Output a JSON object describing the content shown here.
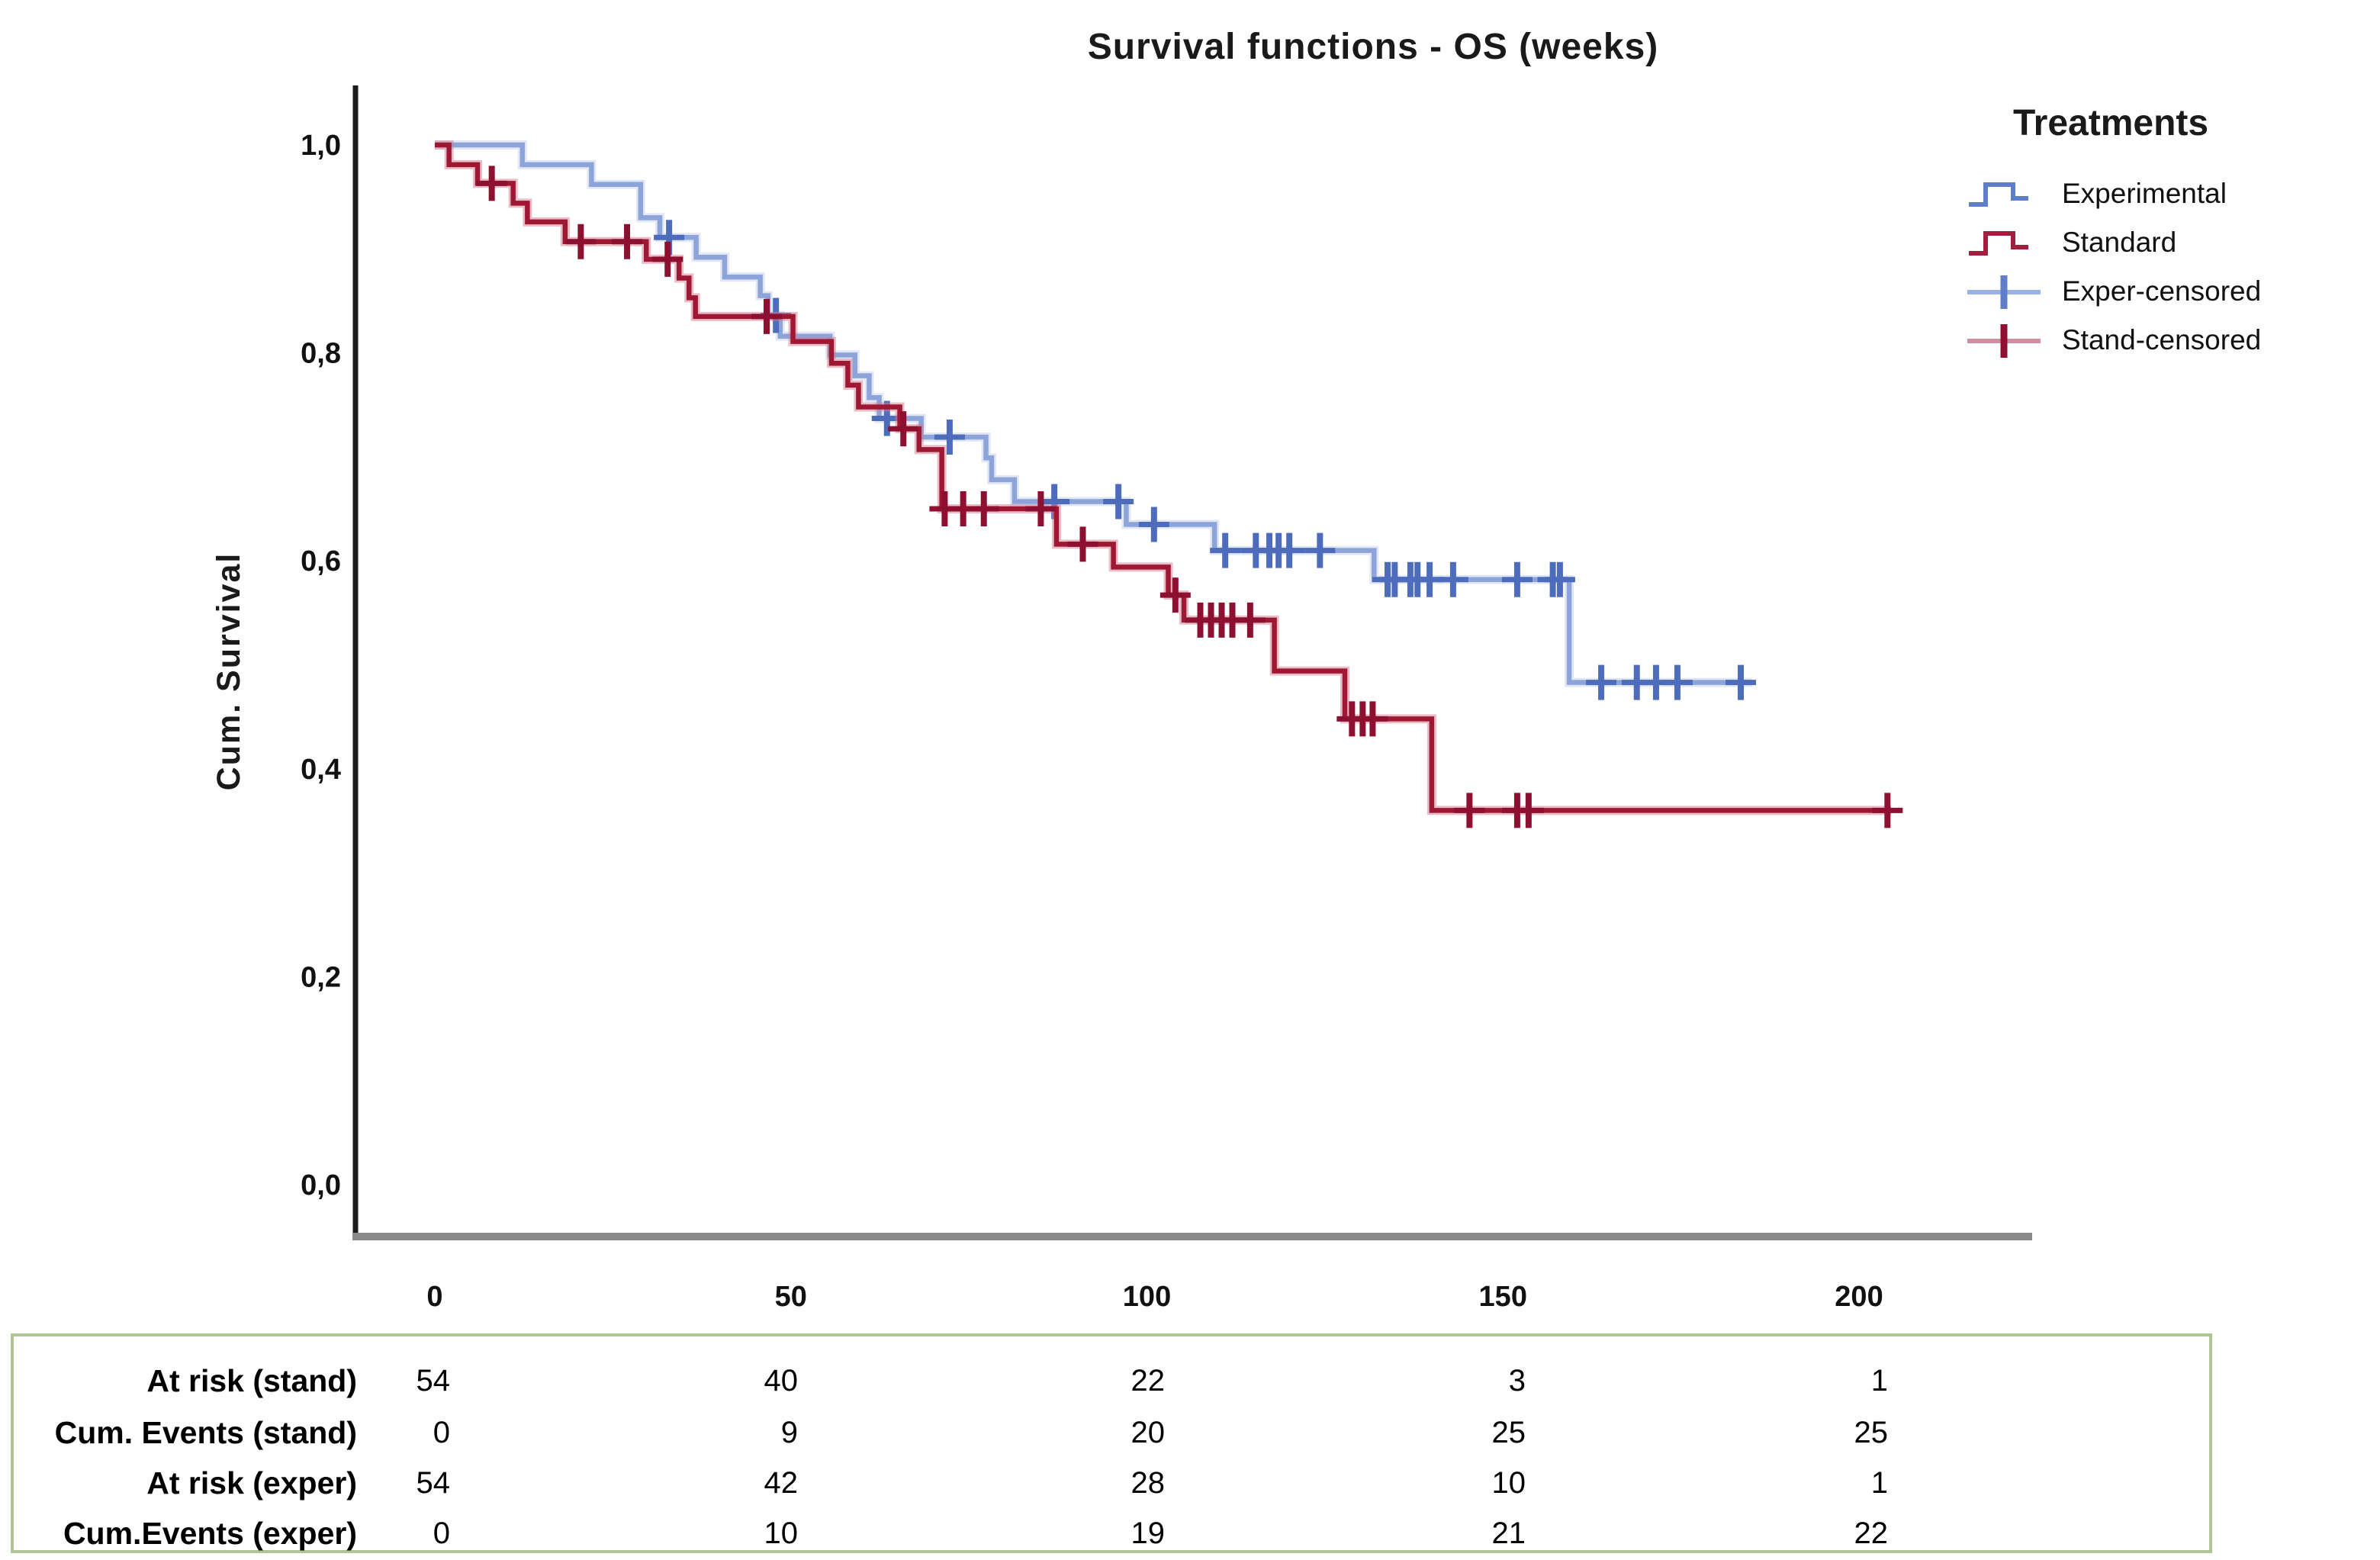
{
  "chart": {
    "title": "Survival functions - OS (weeks)",
    "y_axis_label": "Cum. Survival"
  },
  "legend": {
    "title": "Treatments",
    "items": [
      {
        "label": "Experimental",
        "color": "#5F7EC9"
      },
      {
        "label": "Standard",
        "color": "#A01F3F"
      },
      {
        "label": "Exper-censored",
        "line_color": "#9AB1E1",
        "cross_color": "#5F7EC9"
      },
      {
        "label": "Stand-censored",
        "line_color": "#CE8FA0",
        "cross_color": "#8F1030"
      }
    ]
  },
  "chart_data": {
    "type": "line",
    "subtype": "kaplan-meier-step",
    "title": "Survival functions - OS (weeks)",
    "xlabel": "",
    "ylabel": "Cum. Survival",
    "xlim": [
      0,
      224
    ],
    "ylim": [
      0.0,
      1.05
    ],
    "grid": false,
    "legend_position": "right",
    "x_ticks": [
      0,
      50,
      100,
      150,
      200
    ],
    "x_tick_labels": [
      "0",
      "50",
      "100",
      "150",
      "200"
    ],
    "y_ticks": [
      1.0,
      0.8,
      0.6,
      0.4,
      0.2,
      0.0
    ],
    "y_tick_labels": [
      "1,0",
      "0,8",
      "0,6",
      "0,4",
      "0,2",
      "0,0"
    ],
    "axis_color": "#1c1c1c",
    "x_axis_color": "#8a8a8a",
    "series": [
      {
        "name": "Experimental",
        "color": "#8CA4DA",
        "halo_color": "#C3D0EC",
        "censor_color": "#4E6CBC",
        "start": [
          0,
          1.0
        ],
        "steps": [
          [
            12.3,
            0.981
          ],
          [
            22,
            0.962
          ],
          [
            28.9,
            0.93
          ],
          [
            31.6,
            0.911
          ],
          [
            36.7,
            0.892
          ],
          [
            40.7,
            0.873
          ],
          [
            45.7,
            0.855
          ],
          [
            46.8,
            0.836
          ],
          [
            48.5,
            0.816
          ],
          [
            55.5,
            0.798
          ],
          [
            59,
            0.778
          ],
          [
            61,
            0.757
          ],
          [
            62.4,
            0.737
          ],
          [
            68.3,
            0.719
          ],
          [
            77.4,
            0.699
          ],
          [
            78.2,
            0.678
          ],
          [
            81.4,
            0.657
          ],
          [
            97.1,
            0.635
          ],
          [
            109.5,
            0.61
          ],
          [
            131.9,
            0.582
          ],
          [
            159.3,
            0.483
          ]
        ],
        "end_time": 185,
        "censors": [
          [
            32.9,
            0.911
          ],
          [
            47.9,
            0.836
          ],
          [
            63.5,
            0.737
          ],
          [
            72.3,
            0.719
          ],
          [
            87,
            0.657
          ],
          [
            96,
            0.657
          ],
          [
            101,
            0.635
          ],
          [
            111,
            0.61
          ],
          [
            115.3,
            0.61
          ],
          [
            117.2,
            0.61
          ],
          [
            118.5,
            0.61
          ],
          [
            120,
            0.61
          ],
          [
            124.3,
            0.61
          ],
          [
            133.8,
            0.582
          ],
          [
            134.8,
            0.582
          ],
          [
            137,
            0.582
          ],
          [
            138,
            0.582
          ],
          [
            139.7,
            0.582
          ],
          [
            143,
            0.582
          ],
          [
            152,
            0.582
          ],
          [
            157,
            0.582
          ],
          [
            158,
            0.582
          ],
          [
            163.8,
            0.483
          ],
          [
            168.8,
            0.483
          ],
          [
            171.5,
            0.483
          ],
          [
            174.5,
            0.483
          ],
          [
            183.4,
            0.483
          ]
        ]
      },
      {
        "name": "Standard",
        "color": "#9E1834",
        "halo_color": "#D4798E",
        "censor_color": "#8E1030",
        "start": [
          0,
          1.0
        ],
        "steps": [
          [
            2,
            0.981
          ],
          [
            6,
            0.963
          ],
          [
            11,
            0.944
          ],
          [
            13,
            0.926
          ],
          [
            18.3,
            0.907
          ],
          [
            29.7,
            0.89
          ],
          [
            34.3,
            0.872
          ],
          [
            35.7,
            0.853
          ],
          [
            36.6,
            0.835
          ],
          [
            50.3,
            0.811
          ],
          [
            55.7,
            0.79
          ],
          [
            58,
            0.769
          ],
          [
            59.5,
            0.748
          ],
          [
            65.3,
            0.727
          ],
          [
            68,
            0.707
          ],
          [
            71.2,
            0.65
          ],
          [
            87.3,
            0.616
          ],
          [
            95.3,
            0.594
          ],
          [
            103,
            0.567
          ],
          [
            105.2,
            0.543
          ],
          [
            117.9,
            0.494
          ],
          [
            127.8,
            0.448
          ],
          [
            140,
            0.36
          ]
        ],
        "end_time": 204.5,
        "censors": [
          [
            8,
            0.963
          ],
          [
            20.5,
            0.907
          ],
          [
            27,
            0.907
          ],
          [
            32.7,
            0.89
          ],
          [
            46.6,
            0.835
          ],
          [
            65.8,
            0.727
          ],
          [
            71.6,
            0.65
          ],
          [
            74.2,
            0.65
          ],
          [
            77.1,
            0.65
          ],
          [
            85.1,
            0.65
          ],
          [
            91,
            0.616
          ],
          [
            104,
            0.567
          ],
          [
            107.5,
            0.543
          ],
          [
            109,
            0.543
          ],
          [
            110.5,
            0.543
          ],
          [
            112,
            0.543
          ],
          [
            114.5,
            0.543
          ],
          [
            128.8,
            0.448
          ],
          [
            130.3,
            0.448
          ],
          [
            131.7,
            0.448
          ],
          [
            145.3,
            0.36
          ],
          [
            152,
            0.36
          ],
          [
            153.6,
            0.36
          ],
          [
            204,
            0.36
          ]
        ]
      }
    ]
  },
  "risk_table": {
    "border_color": "#aec694",
    "time_points": [
      0,
      50,
      100,
      150,
      200
    ],
    "rows": [
      {
        "label": "At risk (stand)",
        "values": [
          54,
          40,
          22,
          3,
          1
        ]
      },
      {
        "label": "Cum. Events (stand)",
        "values": [
          0,
          9,
          20,
          25,
          25
        ]
      },
      {
        "label": "At risk (exper)",
        "values": [
          54,
          42,
          28,
          10,
          1
        ]
      },
      {
        "label": "Cum.Events (exper)",
        "values": [
          0,
          10,
          19,
          21,
          22
        ]
      }
    ]
  }
}
